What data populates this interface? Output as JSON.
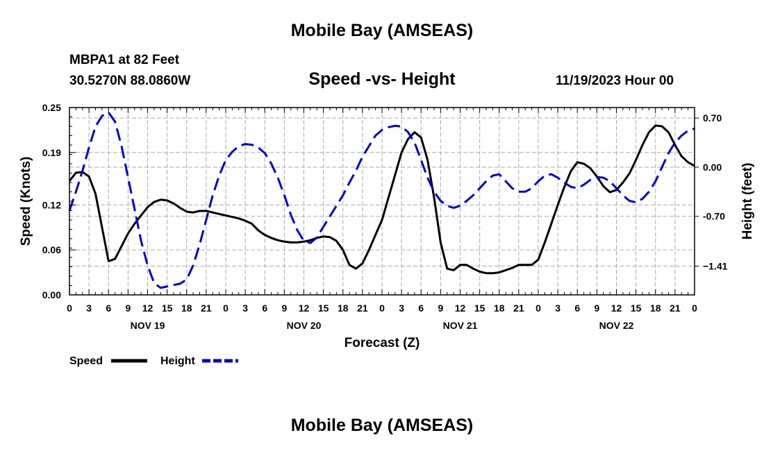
{
  "header": {
    "title": "Mobile Bay (AMSEAS)",
    "station": "MBPA1 at 82 Feet",
    "coords": "30.5270N  88.0860W",
    "subtitle": "Speed -vs- Height",
    "datetime": "11/19/2023 Hour 00",
    "bottom_title": "Mobile Bay (AMSEAS)"
  },
  "colors": {
    "speed": "#000000",
    "height": "#0000cc",
    "grid": "#aaaaaa"
  },
  "chart_data": {
    "type": "line",
    "xlabel": "Forecast (Z)",
    "ylabel": "Speed (Knots)",
    "ylabel_right": "Height (feet)",
    "xlim": [
      0,
      96
    ],
    "ylim": [
      0,
      0.25
    ],
    "ylim_right": [
      -1.82,
      0.85
    ],
    "x_tick_labels": [
      "0",
      "3",
      "6",
      "9",
      "12",
      "15",
      "18",
      "21",
      "0",
      "3",
      "6",
      "9",
      "12",
      "15",
      "18",
      "21",
      "0",
      "3",
      "6",
      "9",
      "12",
      "15",
      "18",
      "21",
      "0",
      "3",
      "6",
      "9",
      "12",
      "15",
      "18",
      "21",
      "0"
    ],
    "y_ticks": [
      0.25,
      0.19,
      0.12,
      0.06,
      0.0
    ],
    "y_tick_labels": [
      "0.25",
      "0.19",
      "0.12",
      "0.06",
      "0.00"
    ],
    "y_ticks_right": [
      0.7,
      0.0,
      -0.7,
      -1.41
    ],
    "y_tick_labels_right": [
      "0.70",
      "0.00",
      "-0.70",
      "−1.41"
    ],
    "day_labels": [
      {
        "label": "NOV 19",
        "hour": 12
      },
      {
        "label": "NOV 20",
        "hour": 36
      },
      {
        "label": "NOV 21",
        "hour": 60
      },
      {
        "label": "NOV 22",
        "hour": 84
      }
    ],
    "series": [
      {
        "name": "Speed",
        "axis": "left",
        "style": "solid",
        "x": [
          0,
          1,
          2,
          3,
          4,
          5,
          6,
          7,
          8,
          9,
          10,
          11,
          12,
          13,
          14,
          15,
          16,
          17,
          18,
          19,
          20,
          21,
          22,
          23,
          24,
          25,
          26,
          27,
          28,
          29,
          30,
          31,
          32,
          33,
          34,
          35,
          36,
          37,
          38,
          39,
          40,
          41,
          42,
          43,
          44,
          45,
          46,
          47,
          48,
          49,
          50,
          51,
          52,
          53,
          54,
          55,
          56,
          57,
          58,
          59,
          60,
          61,
          62,
          63,
          64,
          65,
          66,
          67,
          68,
          69,
          70,
          71,
          72,
          73,
          74,
          75,
          76,
          77,
          78,
          79,
          80,
          81,
          82,
          83,
          84,
          85,
          86,
          87,
          88,
          89,
          90,
          91,
          92,
          93,
          94,
          95,
          96
        ],
        "values": [
          0.152,
          0.163,
          0.164,
          0.158,
          0.135,
          0.09,
          0.045,
          0.048,
          0.065,
          0.082,
          0.095,
          0.106,
          0.117,
          0.124,
          0.127,
          0.126,
          0.122,
          0.116,
          0.111,
          0.11,
          0.112,
          0.112,
          0.11,
          0.108,
          0.106,
          0.104,
          0.102,
          0.099,
          0.095,
          0.086,
          0.08,
          0.076,
          0.073,
          0.071,
          0.07,
          0.07,
          0.071,
          0.073,
          0.076,
          0.078,
          0.077,
          0.072,
          0.06,
          0.04,
          0.035,
          0.042,
          0.06,
          0.08,
          0.1,
          0.13,
          0.16,
          0.19,
          0.208,
          0.217,
          0.21,
          0.18,
          0.13,
          0.07,
          0.035,
          0.033,
          0.04,
          0.04,
          0.035,
          0.031,
          0.029,
          0.029,
          0.03,
          0.033,
          0.036,
          0.04,
          0.04,
          0.04,
          0.047,
          0.07,
          0.095,
          0.12,
          0.144,
          0.165,
          0.177,
          0.175,
          0.169,
          0.158,
          0.145,
          0.137,
          0.14,
          0.15,
          0.162,
          0.18,
          0.2,
          0.217,
          0.226,
          0.225,
          0.217,
          0.2,
          0.185,
          0.177,
          0.172
        ]
      },
      {
        "name": "Height",
        "axis": "right",
        "style": "dashed",
        "x": [
          0,
          1,
          2,
          3,
          4,
          5,
          6,
          7,
          8,
          9,
          10,
          11,
          12,
          13,
          14,
          15,
          16,
          17,
          18,
          19,
          20,
          21,
          22,
          23,
          24,
          25,
          26,
          27,
          28,
          29,
          30,
          31,
          32,
          33,
          34,
          35,
          36,
          37,
          38,
          39,
          40,
          41,
          42,
          43,
          44,
          45,
          46,
          47,
          48,
          49,
          50,
          51,
          52,
          53,
          54,
          55,
          56,
          57,
          58,
          59,
          60,
          61,
          62,
          63,
          64,
          65,
          66,
          67,
          68,
          69,
          70,
          71,
          72,
          73,
          74,
          75,
          76,
          77,
          78,
          79,
          80,
          81,
          82,
          83,
          84,
          85,
          86,
          87,
          88,
          89,
          90,
          91,
          92,
          93,
          94,
          95,
          96
        ],
        "values": [
          -0.62,
          -0.35,
          -0.05,
          0.28,
          0.58,
          0.73,
          0.78,
          0.65,
          0.3,
          -0.15,
          -0.6,
          -1.05,
          -1.4,
          -1.65,
          -1.72,
          -1.7,
          -1.68,
          -1.66,
          -1.6,
          -1.4,
          -1.1,
          -0.75,
          -0.4,
          -0.12,
          0.1,
          0.22,
          0.3,
          0.33,
          0.32,
          0.28,
          0.2,
          0.05,
          -0.15,
          -0.4,
          -0.68,
          -0.9,
          -1.05,
          -1.08,
          -1.0,
          -0.85,
          -0.7,
          -0.55,
          -0.4,
          -0.22,
          -0.05,
          0.15,
          0.3,
          0.45,
          0.53,
          0.57,
          0.59,
          0.58,
          0.5,
          0.35,
          0.1,
          -0.15,
          -0.35,
          -0.48,
          -0.55,
          -0.58,
          -0.55,
          -0.48,
          -0.4,
          -0.3,
          -0.2,
          -0.12,
          -0.1,
          -0.2,
          -0.3,
          -0.35,
          -0.35,
          -0.3,
          -0.2,
          -0.12,
          -0.1,
          -0.15,
          -0.22,
          -0.28,
          -0.3,
          -0.25,
          -0.18,
          -0.14,
          -0.15,
          -0.2,
          -0.3,
          -0.4,
          -0.48,
          -0.5,
          -0.45,
          -0.35,
          -0.2,
          0.0,
          0.2,
          0.35,
          0.45,
          0.52,
          0.55
        ]
      }
    ],
    "legend": [
      {
        "label": "Speed",
        "style": "solid"
      },
      {
        "label": "Height",
        "style": "dashed"
      }
    ]
  }
}
